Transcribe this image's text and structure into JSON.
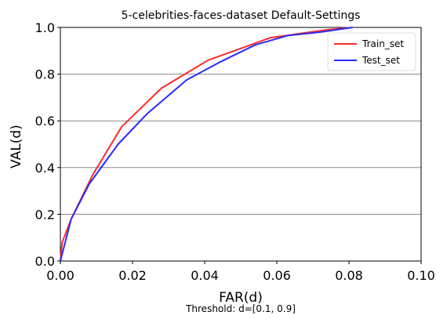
{
  "chart_data": {
    "type": "line",
    "title": "5-celebrities-faces-dataset Default-Settings",
    "xlabel": "FAR(d)",
    "ylabel": "VAL(d)",
    "caption": "Threshold: d=[0.1, 0.9]",
    "xlim": [
      0.0,
      0.1
    ],
    "ylim": [
      0.0,
      1.0
    ],
    "xticks": [
      "0.00",
      "0.02",
      "0.04",
      "0.06",
      "0.08",
      "0.10"
    ],
    "yticks": [
      "0.0",
      "0.2",
      "0.4",
      "0.6",
      "0.8",
      "1.0"
    ],
    "grid": "horizontal",
    "legend_position": "top-right",
    "series": [
      {
        "name": "Train_set",
        "color": "#ff2b2b",
        "x": [
          0.0,
          0.0005,
          0.003,
          0.009,
          0.017,
          0.028,
          0.041,
          0.05,
          0.058,
          0.067,
          0.074,
          0.081
        ],
        "y": [
          0.0,
          0.08,
          0.18,
          0.37,
          0.575,
          0.74,
          0.86,
          0.91,
          0.955,
          0.975,
          0.99,
          1.0
        ]
      },
      {
        "name": "Test_set",
        "color": "#2b2bff",
        "x": [
          0.0,
          0.003,
          0.008,
          0.016,
          0.024,
          0.035,
          0.044,
          0.054,
          0.063,
          0.072,
          0.081
        ],
        "y": [
          0.0,
          0.18,
          0.33,
          0.5,
          0.63,
          0.775,
          0.85,
          0.925,
          0.965,
          0.98,
          1.0
        ]
      }
    ]
  }
}
